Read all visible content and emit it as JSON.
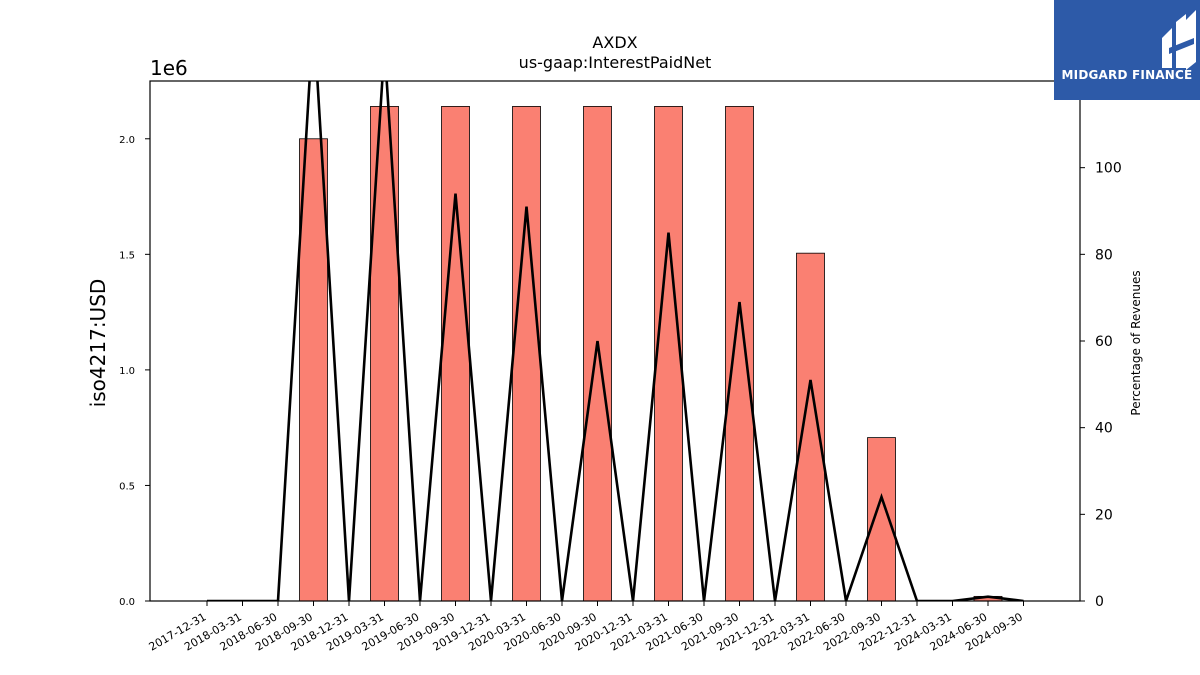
{
  "chart_data": {
    "type": "bar",
    "title": "AXDX",
    "subtitle": "us-gaap:InterestPaidNet",
    "ylabel": "iso4217:USD",
    "y_offset_label": "1e6",
    "y2label": "Percentage of Revenues",
    "ylim": [
      0,
      2250000
    ],
    "y2lim": [
      0,
      120
    ],
    "yticks": [
      "0.0",
      "0.5",
      "1.0",
      "1.5",
      "2.0"
    ],
    "y2ticks": [
      "0",
      "20",
      "40",
      "60",
      "80",
      "100"
    ],
    "categories": [
      "2017-12-31",
      "2018-03-31",
      "2018-06-30",
      "2018-09-30",
      "2018-12-31",
      "2019-03-31",
      "2019-06-30",
      "2019-09-30",
      "2019-12-31",
      "2020-03-31",
      "2020-06-30",
      "2020-09-30",
      "2020-12-31",
      "2021-03-31",
      "2021-06-30",
      "2021-09-30",
      "2021-12-31",
      "2022-03-31",
      "2022-06-30",
      "2022-09-30",
      "2022-12-31",
      "2024-03-31",
      "2024-06-30",
      "2024-09-30"
    ],
    "series": [
      {
        "kind": "bar",
        "color": "#fa8072",
        "values": [
          0,
          0,
          0,
          2000000,
          0,
          2140000,
          0,
          2140000,
          0,
          2140000,
          0,
          2140000,
          0,
          2140000,
          0,
          2140000,
          0,
          1505000,
          0,
          707000,
          0,
          0,
          20000,
          0
        ]
      },
      {
        "kind": "line",
        "axis": "right",
        "color": "#000000",
        "values": [
          0,
          0,
          0,
          135,
          0,
          128,
          0,
          94,
          0,
          91,
          0,
          60,
          0,
          85,
          0,
          69,
          0,
          51,
          0,
          24,
          0,
          0,
          1,
          0
        ]
      }
    ],
    "grid": false
  },
  "logo": {
    "text": "MIDGARD FINANCE"
  }
}
